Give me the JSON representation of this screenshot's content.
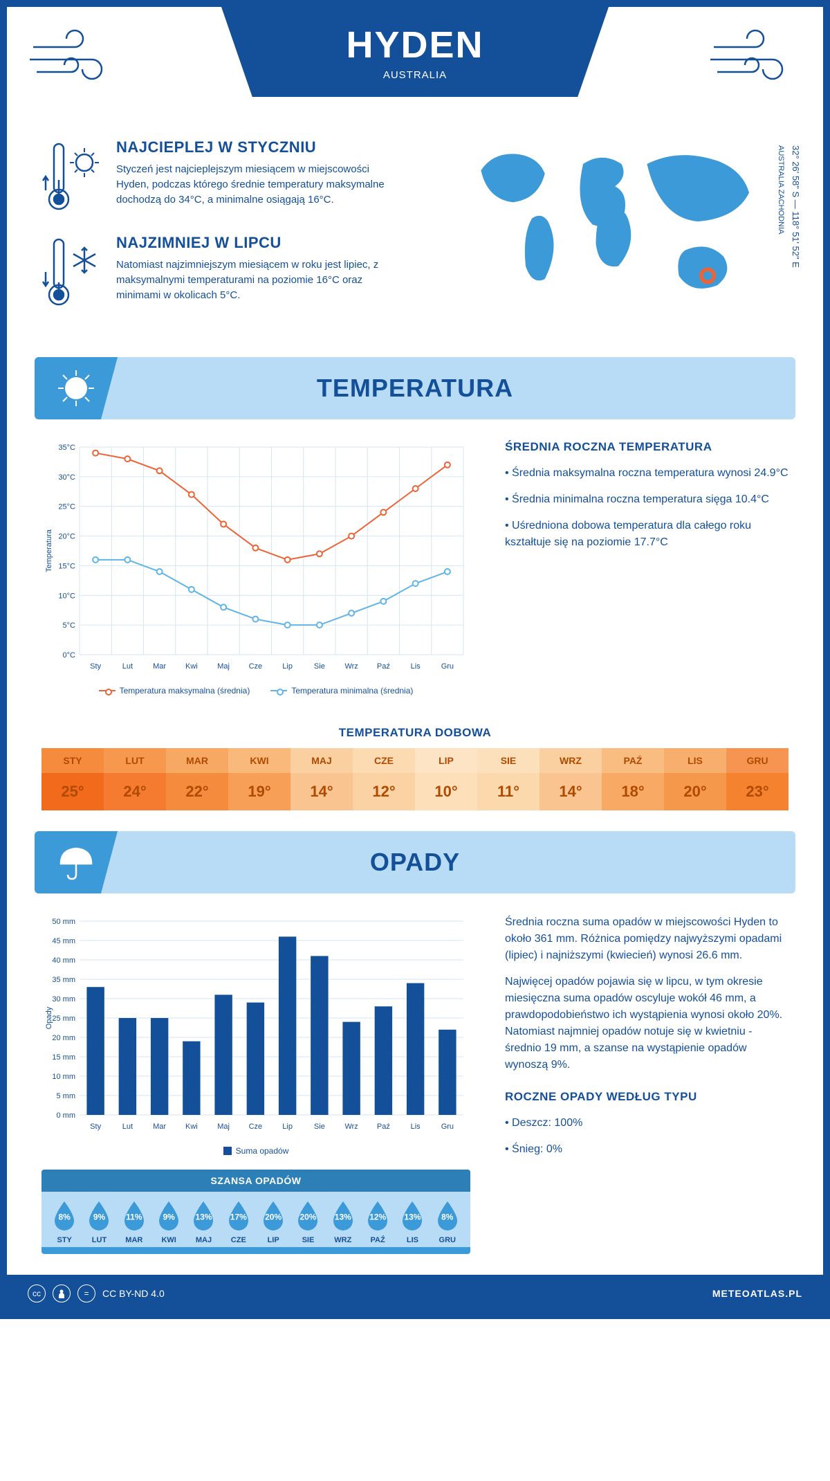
{
  "header": {
    "city": "HYDEN",
    "country": "AUSTRALIA"
  },
  "coords": {
    "lat": "32° 26' 58\" S — 118° 51' 52\" E",
    "region": "AUSTRALIA ZACHODNIA"
  },
  "facts": {
    "hot": {
      "title": "NAJCIEPLEJ W STYCZNIU",
      "text": "Styczeń jest najcieplejszym miesiącem w miejscowości Hyden, podczas którego średnie temperatury maksymalne dochodzą do 34°C, a minimalne osiągają 16°C."
    },
    "cold": {
      "title": "NAJZIMNIEJ W LIPCU",
      "text": "Natomiast najzimniejszym miesiącem w roku jest lipiec, z maksymalnymi temperaturami na poziomie 16°C oraz minimami w okolicach 5°C."
    }
  },
  "sections": {
    "temp": "TEMPERATURA",
    "precip": "OPADY"
  },
  "months": [
    "Sty",
    "Lut",
    "Mar",
    "Kwi",
    "Maj",
    "Cze",
    "Lip",
    "Sie",
    "Wrz",
    "Paź",
    "Lis",
    "Gru"
  ],
  "months_upper": [
    "STY",
    "LUT",
    "MAR",
    "KWI",
    "MAJ",
    "CZE",
    "LIP",
    "SIE",
    "WRZ",
    "PAŹ",
    "LIS",
    "GRU"
  ],
  "temp_chart": {
    "type": "line",
    "ylabel": "Temperatura",
    "ylim": [
      0,
      35
    ],
    "ytick_step": 5,
    "ytick_suffix": "°C",
    "max_series": {
      "values": [
        34,
        33,
        31,
        27,
        22,
        18,
        16,
        17,
        20,
        24,
        28,
        32
      ],
      "color": "#ec6436",
      "label": "Temperatura maksymalna (średnia)"
    },
    "min_series": {
      "values": [
        16,
        16,
        14,
        11,
        8,
        6,
        5,
        5,
        7,
        9,
        12,
        14
      ],
      "color": "#5fb4e8",
      "label": "Temperatura minimalna (średnia)"
    },
    "grid_color": "#d6e6f2",
    "marker_fill": "#ffffff",
    "line_width": 2
  },
  "temp_text": {
    "heading": "ŚREDNIA ROCZNA TEMPERATURA",
    "b1": "• Średnia maksymalna roczna temperatura wynosi 24.9°C",
    "b2": "• Średnia minimalna roczna temperatura sięga 10.4°C",
    "b3": "• Uśredniona dobowa temperatura dla całego roku kształtuje się na poziomie 17.7°C"
  },
  "daily": {
    "title": "TEMPERATURA DOBOWA",
    "values": [
      25,
      24,
      22,
      19,
      14,
      12,
      10,
      11,
      14,
      18,
      20,
      23
    ],
    "header_colors": [
      "#f58b3c",
      "#f6994e",
      "#f7a862",
      "#f9b97b",
      "#fbd0a0",
      "#fcdab2",
      "#fde4c5",
      "#fcdfbb",
      "#fbd0a0",
      "#f9bc81",
      "#f8ae6c",
      "#f69551"
    ],
    "value_colors": [
      "#f26a1b",
      "#f47b2f",
      "#f58b3c",
      "#f79f56",
      "#fac490",
      "#fbd2a4",
      "#fde0ba",
      "#fcd9ad",
      "#fac490",
      "#f8a963",
      "#f6984c",
      "#f4822f"
    ]
  },
  "precip_chart": {
    "type": "bar",
    "ylabel": "Opady",
    "ylim": [
      0,
      50
    ],
    "ytick_step": 5,
    "ytick_suffix": " mm",
    "values": [
      33,
      25,
      25,
      19,
      31,
      29,
      46,
      41,
      24,
      28,
      34,
      22
    ],
    "bar_color": "#144f9a",
    "grid_color": "#d6e6f2",
    "legend": "Suma opadów"
  },
  "precip_text": {
    "p1": "Średnia roczna suma opadów w miejscowości Hyden to około 361 mm. Różnica pomiędzy najwyższymi opadami (lipiec) i najniższymi (kwiecień) wynosi 26.6 mm.",
    "p2": "Najwięcej opadów pojawia się w lipcu, w tym okresie miesięczna suma opadów oscyluje wokół 46 mm, a prawdopodobieństwo ich wystąpienia wynosi około 20%. Natomiast najmniej opadów notuje się w kwietniu - średnio 19 mm, a szanse na wystąpienie opadów wynoszą 9%.",
    "type_heading": "ROCZNE OPADY WEDŁUG TYPU",
    "rain": "• Deszcz: 100%",
    "snow": "• Śnieg: 0%"
  },
  "chance": {
    "title": "SZANSA OPADÓW",
    "values": [
      "8%",
      "9%",
      "11%",
      "9%",
      "13%",
      "17%",
      "20%",
      "20%",
      "13%",
      "12%",
      "13%",
      "8%"
    ],
    "drop_color": "#3d9ad8"
  },
  "footer": {
    "license": "CC BY-ND 4.0",
    "site": "METEOATLAS.PL"
  },
  "colors": {
    "primary": "#144f9a",
    "light_blue": "#b8dcf5",
    "mid_blue": "#3d9ad8"
  }
}
